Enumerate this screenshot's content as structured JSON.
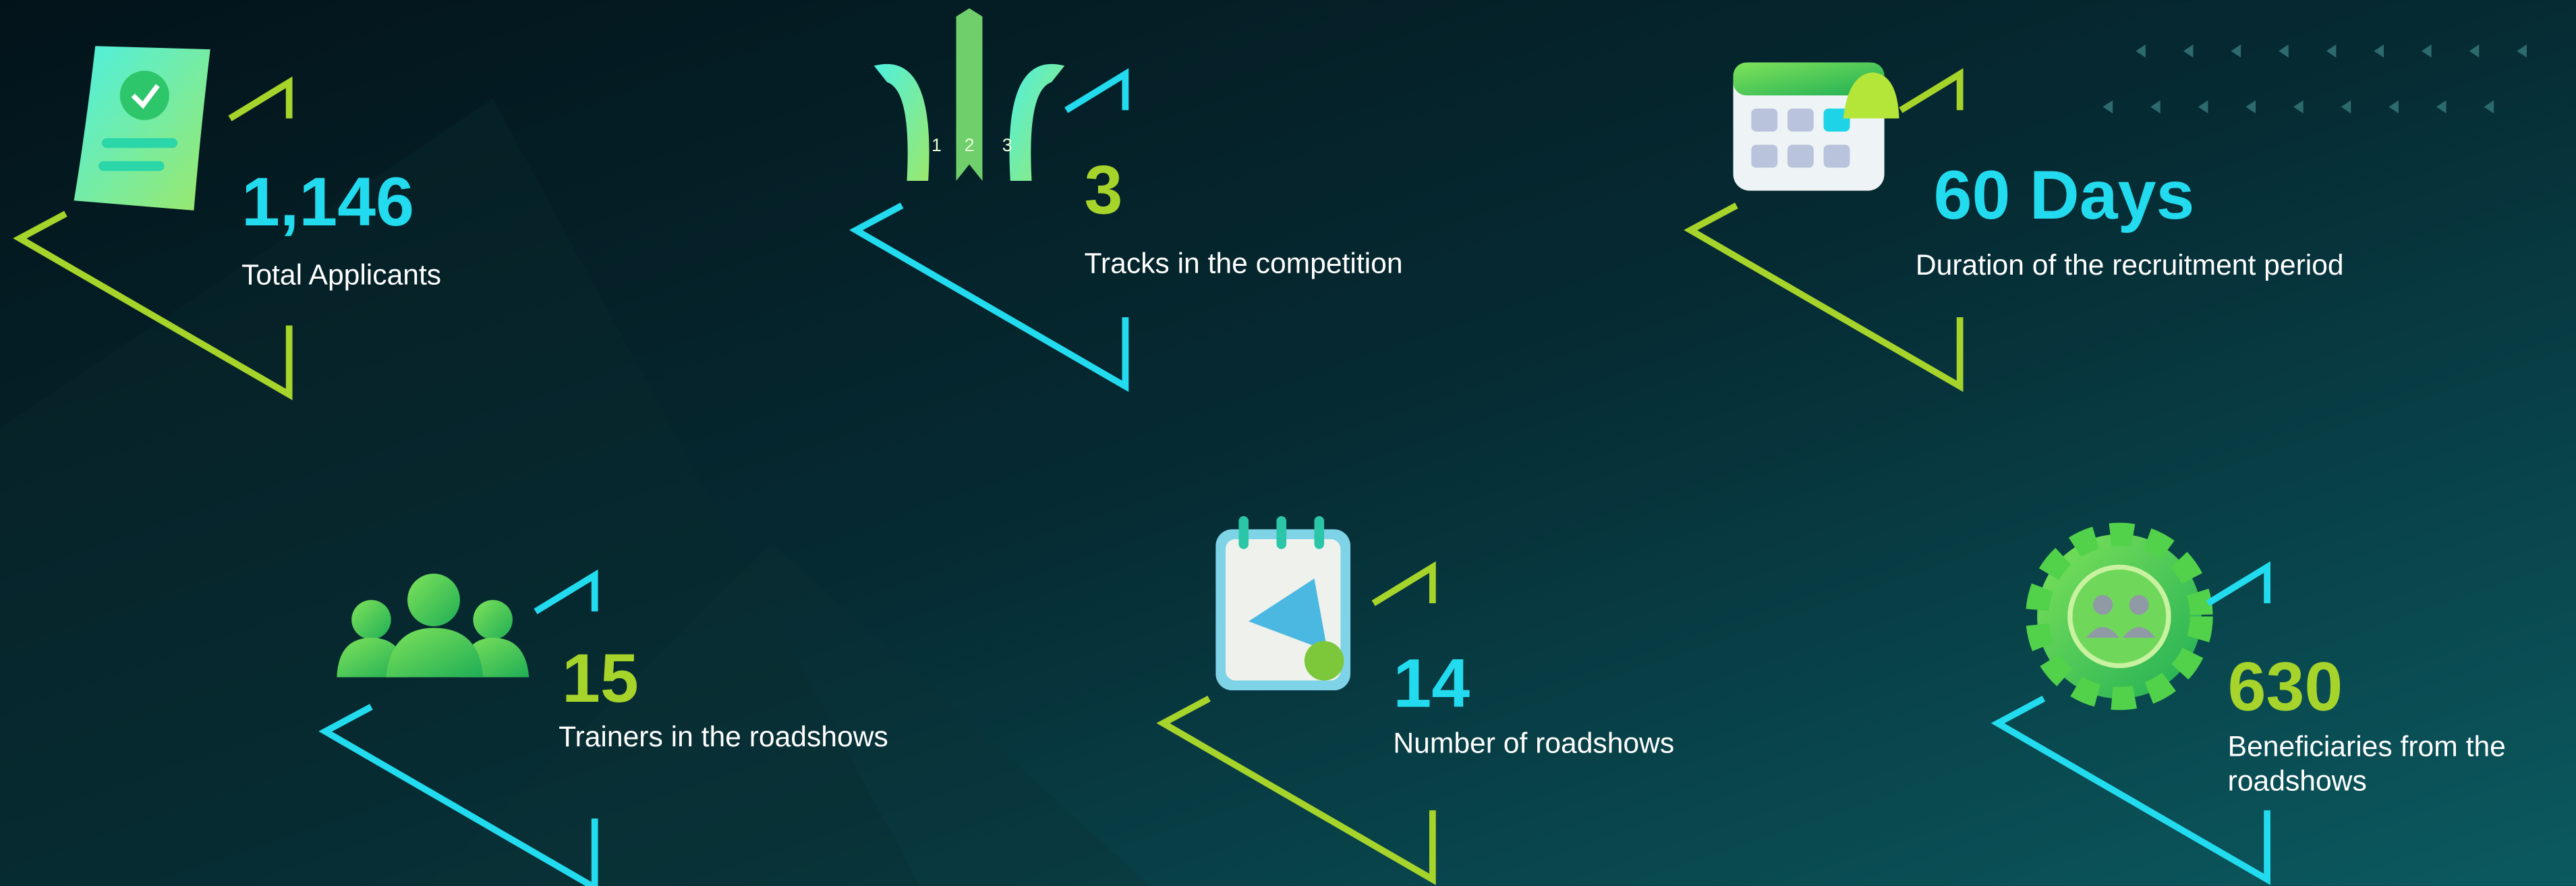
{
  "stats": [
    {
      "value": "1,146",
      "label": "Total Applicants"
    },
    {
      "value": "3",
      "label": "Tracks  in the competition"
    },
    {
      "value": "60 Days",
      "label": "Duration of the recruitment period"
    },
    {
      "value": "15",
      "label": "Trainers in the roadshows"
    },
    {
      "value": "14",
      "label": "Number of roadshows"
    },
    {
      "value": "630",
      "label": "Beneficiaries from the roadshows"
    }
  ]
}
